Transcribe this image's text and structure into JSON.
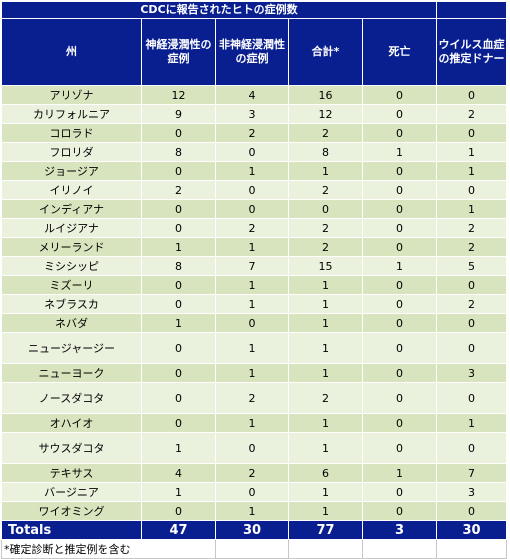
{
  "table": {
    "title": "CDCに報告されたヒトの症例数",
    "headers": [
      "州",
      "神経浸潤性の症例",
      "非神経浸潤性の症例",
      "合計*",
      "死亡",
      "ウイルス血症の推定ドナー"
    ],
    "rows": [
      {
        "state": "アリゾナ",
        "neuro": "12",
        "nonneuro": "4",
        "total": "16",
        "deaths": "0",
        "donors": "0"
      },
      {
        "state": "カリフォルニア",
        "neuro": "9",
        "nonneuro": "3",
        "total": "12",
        "deaths": "0",
        "donors": "2"
      },
      {
        "state": "コロラド",
        "neuro": "0",
        "nonneuro": "2",
        "total": "2",
        "deaths": "0",
        "donors": "0"
      },
      {
        "state": "フロリダ",
        "neuro": "8",
        "nonneuro": "0",
        "total": "8",
        "deaths": "1",
        "donors": "1"
      },
      {
        "state": "ジョージア",
        "neuro": "0",
        "nonneuro": "1",
        "total": "1",
        "deaths": "0",
        "donors": "1"
      },
      {
        "state": "イリノイ",
        "neuro": "2",
        "nonneuro": "0",
        "total": "2",
        "deaths": "0",
        "donors": "0"
      },
      {
        "state": "インディアナ",
        "neuro": "0",
        "nonneuro": "0",
        "total": "0",
        "deaths": "0",
        "donors": "1"
      },
      {
        "state": "ルイジアナ",
        "neuro": "0",
        "nonneuro": "2",
        "total": "2",
        "deaths": "0",
        "donors": "2"
      },
      {
        "state": "メリーランド",
        "neuro": "1",
        "nonneuro": "1",
        "total": "2",
        "deaths": "0",
        "donors": "2"
      },
      {
        "state": "ミシシッピ",
        "neuro": "8",
        "nonneuro": "7",
        "total": "15",
        "deaths": "1",
        "donors": "5"
      },
      {
        "state": "ミズーリ",
        "neuro": "0",
        "nonneuro": "1",
        "total": "1",
        "deaths": "0",
        "donors": "0"
      },
      {
        "state": "ネブラスカ",
        "neuro": "0",
        "nonneuro": "1",
        "total": "1",
        "deaths": "0",
        "donors": "2"
      },
      {
        "state": "ネバダ",
        "neuro": "1",
        "nonneuro": "0",
        "total": "1",
        "deaths": "0",
        "donors": "0"
      },
      {
        "state": "ニュージャージー",
        "neuro": "0",
        "nonneuro": "1",
        "total": "1",
        "deaths": "0",
        "donors": "0"
      },
      {
        "state": "ニューヨーク",
        "neuro": "0",
        "nonneuro": "1",
        "total": "1",
        "deaths": "0",
        "donors": "3"
      },
      {
        "state": "ノースダコタ",
        "neuro": "0",
        "nonneuro": "2",
        "total": "2",
        "deaths": "0",
        "donors": "0"
      },
      {
        "state": "オハイオ",
        "neuro": "0",
        "nonneuro": "1",
        "total": "1",
        "deaths": "0",
        "donors": "1"
      },
      {
        "state": "サウスダコタ",
        "neuro": "1",
        "nonneuro": "0",
        "total": "1",
        "deaths": "0",
        "donors": "0"
      },
      {
        "state": "テキサス",
        "neuro": "4",
        "nonneuro": "2",
        "total": "6",
        "deaths": "1",
        "donors": "7"
      },
      {
        "state": "バージニア",
        "neuro": "1",
        "nonneuro": "0",
        "total": "1",
        "deaths": "0",
        "donors": "3"
      },
      {
        "state": "ワイオミング",
        "neuro": "0",
        "nonneuro": "1",
        "total": "1",
        "deaths": "0",
        "donors": "0"
      }
    ],
    "totals": {
      "label": "Totals",
      "neuro": "47",
      "nonneuro": "30",
      "total": "77",
      "deaths": "3",
      "donors": "30"
    },
    "footnote": "*確定診断と推定例を含む"
  },
  "colors": {
    "header_bg": "#0a1f8f",
    "row_dark": "#d7e4bd",
    "row_light": "#eaf1dd"
  }
}
